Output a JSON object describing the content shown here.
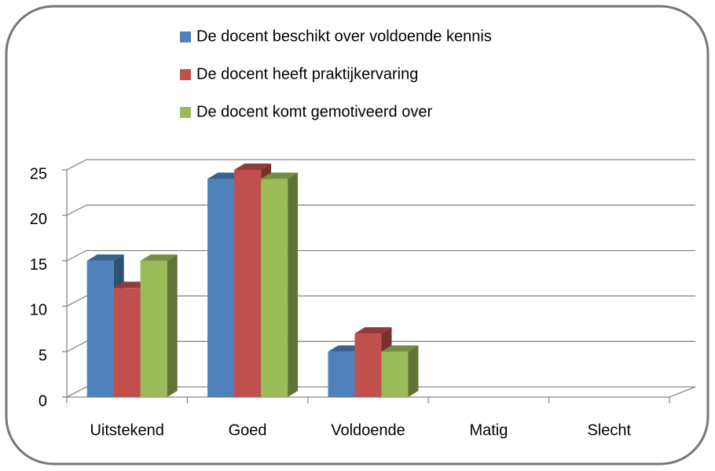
{
  "chart_data": {
    "type": "bar3d",
    "categories": [
      "Uitstekend",
      "Goed",
      "Voldoende",
      "Matig",
      "Slecht"
    ],
    "series": [
      {
        "name": "De docent beschikt over voldoende kennis",
        "color": "#4f81bd",
        "values": [
          15,
          24,
          5,
          0,
          0
        ]
      },
      {
        "name": "De docent heeft praktijkervaring",
        "color": "#c0504d",
        "values": [
          12,
          25,
          7,
          0,
          0
        ]
      },
      {
        "name": "De docent komt gemotiveerd over",
        "color": "#9bbb59",
        "values": [
          15,
          24,
          5,
          0,
          0
        ]
      }
    ],
    "ylim": [
      0,
      25
    ],
    "yticks": [
      0,
      5,
      10,
      15,
      20,
      25
    ],
    "grid": true,
    "legend": "top"
  }
}
